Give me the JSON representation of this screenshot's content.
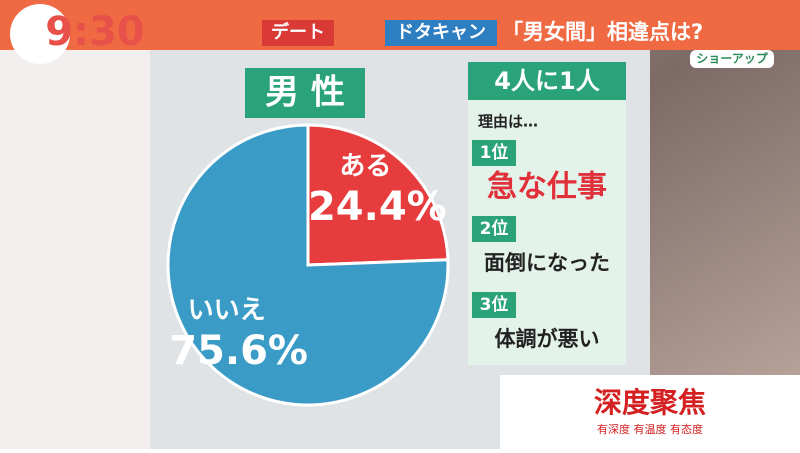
{
  "clock": "9:30",
  "header": {
    "tag": "デート",
    "topic": "ドタキャン",
    "headline": "「男女間」相違点は?"
  },
  "badge": "ショーアップ",
  "chart_data": {
    "type": "pie",
    "title": "男 性",
    "categories": [
      "ある",
      "いいえ"
    ],
    "values": [
      24.4,
      75.6
    ],
    "value_labels": [
      "24.4%",
      "75.6%"
    ],
    "colors": [
      "#e63c3d",
      "#3a9cc6"
    ]
  },
  "panel": {
    "title": "4人に1人",
    "intro": "理由は…",
    "ranks": [
      {
        "rank": "1位",
        "reason": "急な仕事"
      },
      {
        "rank": "2位",
        "reason": "面倒になった"
      },
      {
        "rank": "3位",
        "reason": "体調が悪い"
      }
    ]
  },
  "watermark": {
    "title": "深度聚焦",
    "subtitle": "有深度 有温度 有态度"
  }
}
